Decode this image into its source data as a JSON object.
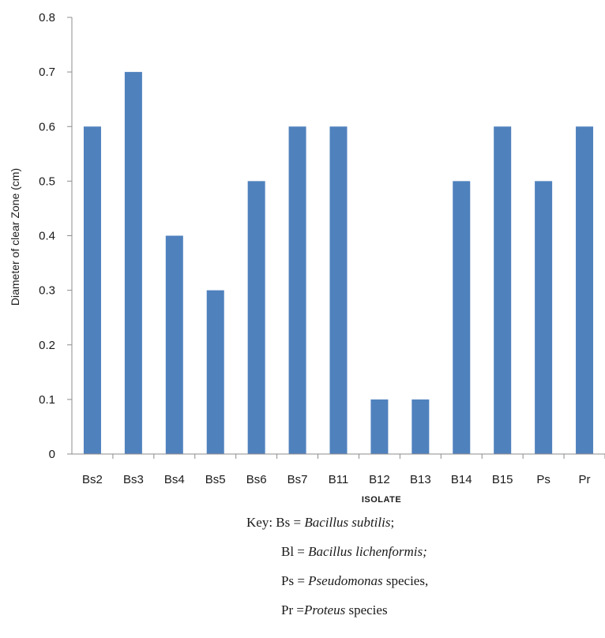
{
  "chart_data": {
    "type": "bar",
    "title": "",
    "xlabel": "ISOLATE",
    "ylabel": "Diameter of clear Zone (cm)",
    "categories": [
      "Bs2",
      "Bs3",
      "Bs4",
      "Bs5",
      "Bs6",
      "Bs7",
      "B11",
      "B12",
      "B13",
      "B14",
      "B15",
      "Ps",
      "Pr"
    ],
    "values": [
      0.6,
      0.7,
      0.4,
      0.3,
      0.5,
      0.6,
      0.6,
      0.1,
      0.1,
      0.5,
      0.6,
      0.5,
      0.6
    ],
    "ylim": [
      0,
      0.8
    ],
    "yticks": [
      "0",
      "0.1",
      "0.2",
      "0.3",
      "0.4",
      "0.5",
      "0.6",
      "0.7",
      "0.8"
    ],
    "bar_color": "#4f81bd",
    "grid": false,
    "legend": "none"
  },
  "key": {
    "line1_prefix": "Key: Bs = ",
    "line1_italic": "Bacillus subtilis",
    "line1_suffix": ";",
    "line2_prefix": "Bl = ",
    "line2_italic": "Bacillus lichenformis;",
    "line2_suffix": "",
    "line3_prefix": "Ps = ",
    "line3_italic": "Pseudomonas",
    "line3_suffix": " species,",
    "line4_prefix": "Pr =",
    "line4_italic": "Proteus",
    "line4_suffix": " species"
  }
}
